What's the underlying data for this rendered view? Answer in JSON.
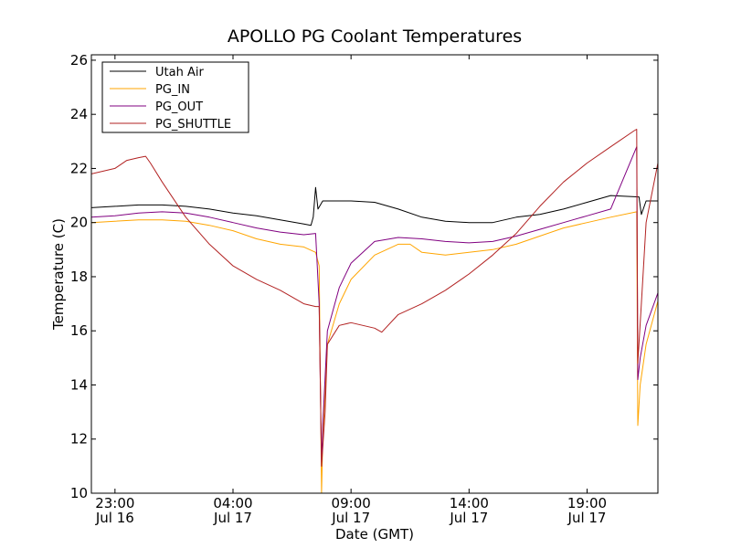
{
  "chart_data": {
    "type": "line",
    "title": "APOLLO PG Coolant Temperatures",
    "xlabel": "Date (GMT)",
    "ylabel": "Temperature (C)",
    "x_unit": "hours since Jul 16 22:00 GMT",
    "xlim": [
      0,
      24
    ],
    "ylim": [
      10,
      26.2
    ],
    "y_ticks": [
      10,
      12,
      14,
      16,
      18,
      20,
      22,
      24,
      26
    ],
    "x_ticks": [
      {
        "x": 1,
        "time": "23:00",
        "date": "Jul 16"
      },
      {
        "x": 6,
        "time": "04:00",
        "date": "Jul 17"
      },
      {
        "x": 11,
        "time": "09:00",
        "date": "Jul 17"
      },
      {
        "x": 16,
        "time": "14:00",
        "date": "Jul 17"
      },
      {
        "x": 21,
        "time": "19:00",
        "date": "Jul 17"
      }
    ],
    "legend_position": "top-left",
    "series": [
      {
        "name": "Utah Air",
        "color": "#000000",
        "x": [
          0,
          1,
          2,
          3,
          4,
          5,
          6,
          7,
          8,
          9,
          9.3,
          9.4,
          9.5,
          9.6,
          9.8,
          10,
          11,
          12,
          13,
          14,
          15,
          16,
          17,
          18,
          19,
          20,
          21,
          22,
          23.2,
          23.3,
          23.5,
          24
        ],
        "y": [
          20.55,
          20.6,
          20.65,
          20.65,
          20.6,
          20.5,
          20.35,
          20.25,
          20.1,
          19.95,
          19.9,
          20.2,
          21.3,
          20.5,
          20.8,
          20.8,
          20.8,
          20.75,
          20.5,
          20.2,
          20.05,
          20.0,
          20.0,
          20.2,
          20.3,
          20.5,
          20.75,
          21.0,
          20.95,
          20.3,
          20.8,
          20.8
        ]
      },
      {
        "name": "PG_IN",
        "color": "#ffa500",
        "x": [
          0,
          1,
          2,
          3,
          4,
          5,
          6,
          7,
          8,
          9,
          9.5,
          9.65,
          9.75,
          9.8,
          10,
          10.5,
          11,
          12,
          13,
          13.5,
          14,
          15,
          16,
          17,
          18,
          19,
          20,
          21,
          22,
          23.1,
          23.15,
          23.25,
          23.5,
          24
        ],
        "y": [
          20.0,
          20.05,
          20.1,
          20.1,
          20.05,
          19.9,
          19.7,
          19.4,
          19.2,
          19.1,
          18.9,
          18.4,
          10.0,
          12.0,
          15.5,
          17.0,
          17.9,
          18.8,
          19.2,
          19.2,
          18.9,
          18.8,
          18.9,
          19.0,
          19.2,
          19.5,
          19.8,
          20.0,
          20.2,
          20.4,
          12.5,
          14.0,
          15.5,
          17.1
        ]
      },
      {
        "name": "PG_OUT",
        "color": "#800080",
        "x": [
          0,
          1,
          2,
          3,
          4,
          5,
          6,
          7,
          8,
          9,
          9.5,
          9.65,
          9.75,
          9.8,
          10,
          10.5,
          11,
          12,
          13,
          14,
          15,
          16,
          17,
          18,
          19,
          20,
          21,
          22,
          23.1,
          23.15,
          23.25,
          23.5,
          24
        ],
        "y": [
          20.2,
          20.25,
          20.35,
          20.4,
          20.35,
          20.2,
          20.0,
          19.8,
          19.65,
          19.55,
          19.6,
          17.0,
          11.0,
          12.5,
          16.0,
          17.6,
          18.5,
          19.3,
          19.45,
          19.4,
          19.3,
          19.25,
          19.3,
          19.5,
          19.75,
          20.0,
          20.25,
          20.5,
          22.8,
          14.2,
          15.0,
          16.2,
          17.4
        ]
      },
      {
        "name": "PG_SHUTTLE",
        "color": "#b22222",
        "x": [
          0,
          1,
          1.5,
          2,
          2.3,
          2.5,
          3,
          4,
          5,
          6,
          7,
          8,
          9,
          9.5,
          9.65,
          9.75,
          9.9,
          10,
          10.5,
          11,
          12,
          12.3,
          13,
          14,
          15,
          16,
          17,
          18,
          19,
          20,
          21,
          22,
          23,
          23.1,
          23.15,
          23.3,
          23.5,
          24
        ],
        "y": [
          21.8,
          22.0,
          22.3,
          22.4,
          22.45,
          22.2,
          21.5,
          20.2,
          19.2,
          18.4,
          17.9,
          17.5,
          17.0,
          16.9,
          16.9,
          11.0,
          13.0,
          15.5,
          16.2,
          16.3,
          16.1,
          15.95,
          16.6,
          17.0,
          17.5,
          18.1,
          18.8,
          19.6,
          20.6,
          21.5,
          22.2,
          22.8,
          23.4,
          23.45,
          14.8,
          17.0,
          20.0,
          22.2
        ]
      }
    ]
  }
}
